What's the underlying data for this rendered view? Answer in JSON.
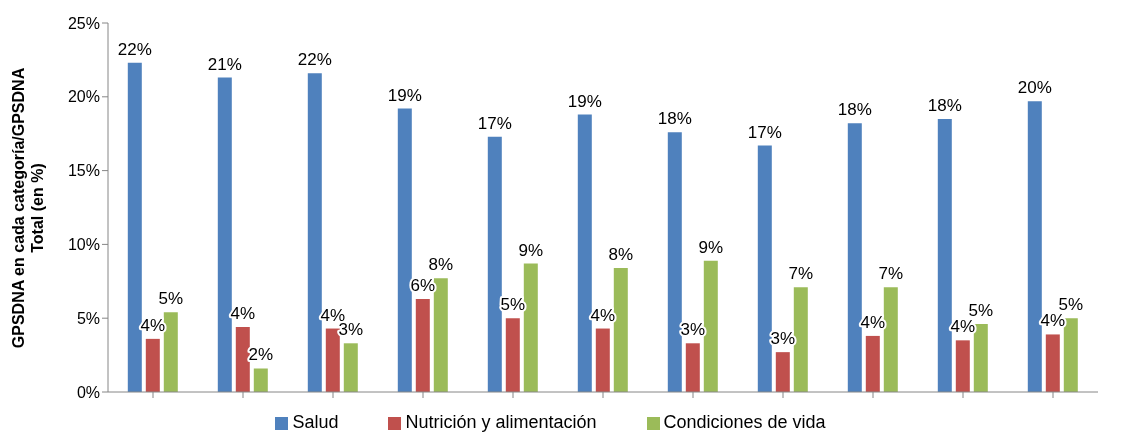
{
  "chart_data": {
    "type": "bar",
    "ylabel": "GPSDNA en cada categoría/GPSDNA Total (en %)",
    "categories": [
      null,
      null,
      null,
      null,
      null,
      null,
      null,
      null,
      null,
      null,
      null
    ],
    "series": [
      {
        "name": "Salud",
        "color": "#4f81bd",
        "values": [
          22.3,
          21.3,
          21.6,
          19.2,
          17.3,
          18.8,
          17.6,
          16.7,
          18.2,
          18.5,
          19.7
        ],
        "value_labels": [
          "22%",
          "21%",
          "22%",
          "19%",
          "17%",
          "19%",
          "18%",
          "17%",
          "18%",
          "18%",
          "20%"
        ]
      },
      {
        "name": "Nutrición y alimentación",
        "color": "#c0504d",
        "values": [
          3.6,
          4.4,
          4.3,
          6.3,
          5.0,
          4.3,
          3.3,
          2.7,
          3.8,
          3.5,
          3.9
        ],
        "value_labels": [
          "4%",
          "4%",
          "4%",
          "6%",
          "5%",
          "4%",
          "3%",
          "3%",
          "4%",
          "4%",
          "4%"
        ]
      },
      {
        "name": "Condiciones de vida",
        "color": "#9bbb59",
        "values": [
          5.4,
          1.6,
          3.3,
          7.7,
          8.7,
          8.4,
          8.9,
          7.1,
          7.1,
          4.6,
          5.0
        ],
        "value_labels": [
          "5%",
          "2%",
          "3%",
          "8%",
          "9%",
          "8%",
          "9%",
          "7%",
          "7%",
          "5%",
          "5%"
        ]
      }
    ],
    "ylim": [
      0,
      25
    ],
    "yticks": [
      {
        "value": 0,
        "label": "0%"
      },
      {
        "value": 5,
        "label": "5%"
      },
      {
        "value": 10,
        "label": "10%"
      },
      {
        "value": 15,
        "label": "15%"
      },
      {
        "value": 20,
        "label": "20%"
      },
      {
        "value": 25,
        "label": "25%"
      }
    ],
    "grid": false,
    "legend": "bottom"
  }
}
